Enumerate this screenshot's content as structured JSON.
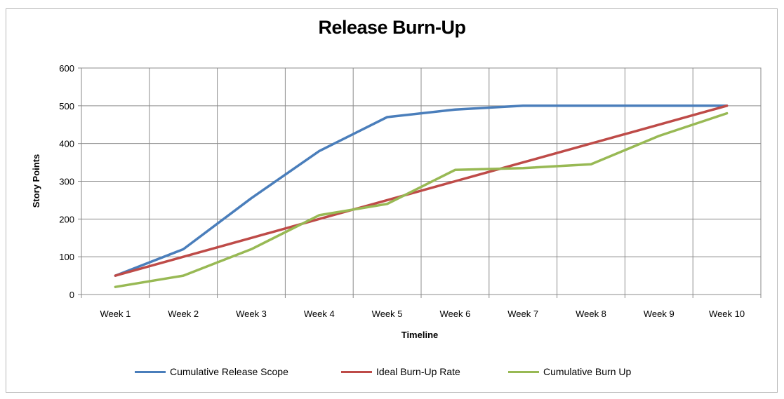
{
  "chart_data": {
    "type": "line",
    "title": "Release Burn-Up",
    "xlabel": "Timeline",
    "ylabel": "Story Points",
    "categories": [
      "Week 1",
      "Week 2",
      "Week 3",
      "Week 4",
      "Week 5",
      "Week 6",
      "Week 7",
      "Week 8",
      "Week 9",
      "Week 10"
    ],
    "ylim": [
      0,
      600
    ],
    "yticks": [
      0,
      100,
      200,
      300,
      400,
      500,
      600
    ],
    "grid": true,
    "legend_position": "bottom",
    "series": [
      {
        "name": "Cumulative Release Scope",
        "color": "#4a7ebb",
        "values": [
          50,
          120,
          255,
          380,
          470,
          490,
          500,
          500,
          500,
          500
        ]
      },
      {
        "name": "Ideal Burn-Up Rate",
        "color": "#be4b48",
        "values": [
          50,
          100,
          150,
          200,
          250,
          300,
          350,
          400,
          450,
          500
        ]
      },
      {
        "name": "Cumulative Burn Up",
        "color": "#98b954",
        "values": [
          20,
          50,
          120,
          210,
          240,
          330,
          335,
          345,
          420,
          480
        ]
      }
    ]
  }
}
